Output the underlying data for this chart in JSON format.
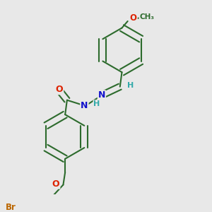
{
  "bg_color": "#e8e8e8",
  "bond_color": "#2d6b2d",
  "bond_lw": 1.5,
  "dbo": 0.018,
  "atom_colors": {
    "O": "#dd2200",
    "N": "#1111cc",
    "Br": "#bb6600",
    "H": "#33aaaa",
    "C": "#2d6b2d",
    "CH3": "#2d6b2d"
  },
  "font_size": 8.5,
  "fig_size": [
    3.0,
    3.0
  ],
  "dpi": 100,
  "xlim": [
    0.1,
    0.9
  ],
  "ylim": [
    0.02,
    1.02
  ]
}
